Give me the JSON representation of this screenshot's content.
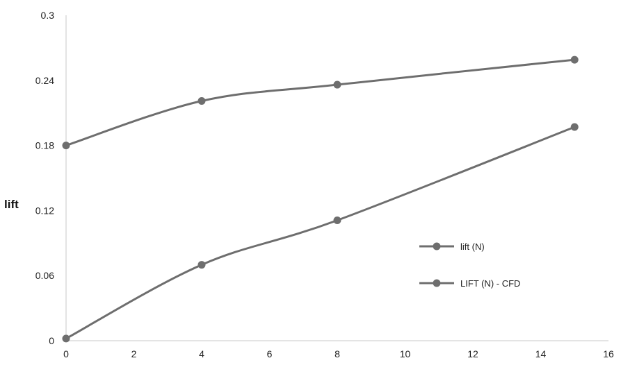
{
  "chart_data": {
    "type": "line",
    "title": "",
    "xlabel": "",
    "ylabel": "lift",
    "xlim": [
      0,
      16
    ],
    "ylim": [
      0,
      0.3
    ],
    "x_ticks": [
      "0",
      "2",
      "4",
      "6",
      "8",
      "10",
      "12",
      "14",
      "16"
    ],
    "y_ticks": [
      "0",
      "0.06",
      "0.12",
      "0.18",
      "0.24",
      "0.3"
    ],
    "grid": false,
    "legend_position": "right",
    "series": [
      {
        "name": "lift (N)",
        "color": "#6e6e6e",
        "x": [
          0,
          4,
          8,
          15
        ],
        "y": [
          0.18,
          0.221,
          0.236,
          0.259
        ]
      },
      {
        "name": "LIFT (N) - CFD",
        "color": "#6e6e6e",
        "x": [
          0,
          4,
          8,
          15
        ],
        "y": [
          0.002,
          0.07,
          0.111,
          0.197
        ]
      }
    ]
  }
}
